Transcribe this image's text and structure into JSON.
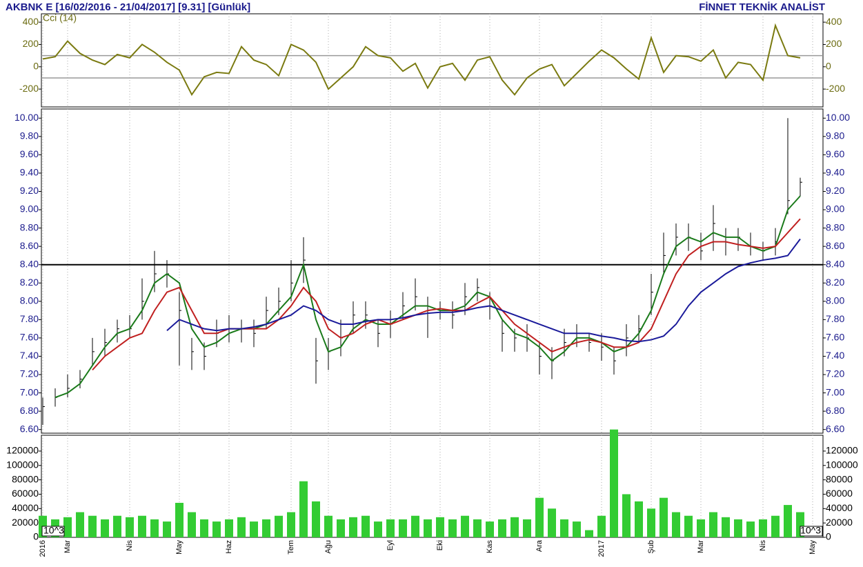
{
  "header": {
    "title": "AKBNK E  [16/02/2016 - 21/04/2017]  [9.31]  [Günlük]",
    "brand": "FİNNET TEKNİK ANALİST"
  },
  "chart_data": [
    {
      "type": "line",
      "label": "Cci (14)",
      "ylim": [
        -360,
        475
      ],
      "yticks": [
        -200,
        0,
        200,
        400
      ],
      "hlines": [
        100,
        -100
      ],
      "series": [
        {
          "color": "#7a7a10",
          "values": [
            70,
            90,
            230,
            120,
            60,
            20,
            110,
            80,
            200,
            130,
            40,
            -30,
            -250,
            -90,
            -50,
            -60,
            180,
            60,
            20,
            -80,
            200,
            150,
            40,
            -200,
            -100,
            0,
            180,
            100,
            80,
            -40,
            30,
            -190,
            0,
            30,
            -120,
            60,
            90,
            -120,
            -250,
            -100,
            -20,
            20,
            -170,
            -60,
            50,
            150,
            80,
            -20,
            -110,
            260,
            -50,
            100,
            90,
            50,
            150,
            -100,
            40,
            20,
            -120,
            370,
            100,
            80,
            null
          ]
        }
      ]
    },
    {
      "type": "ohlc",
      "ylim": [
        6.56,
        10.1
      ],
      "hline": 8.4,
      "color": "#000000",
      "yticks": [
        {
          "value": 6.6,
          "label": "6.60"
        },
        {
          "value": 6.8,
          "label": "6.80"
        },
        {
          "value": 7.0,
          "label": "7.00"
        },
        {
          "value": 7.2,
          "label": "7.20"
        },
        {
          "value": 7.4,
          "label": "7.40"
        },
        {
          "value": 7.6,
          "label": "7.60"
        },
        {
          "value": 7.8,
          "label": "7.80"
        },
        {
          "value": 8.0,
          "label": "8.00"
        },
        {
          "value": 8.2,
          "label": "8.20"
        },
        {
          "value": 8.4,
          "label": "8.40"
        },
        {
          "value": 8.6,
          "label": "8.60"
        },
        {
          "value": 8.8,
          "label": "8.80"
        },
        {
          "value": 9.0,
          "label": "9.00"
        },
        {
          "value": 9.2,
          "label": "9.20"
        },
        {
          "value": 9.4,
          "label": "9.40"
        },
        {
          "value": 9.6,
          "label": "9.60"
        },
        {
          "value": 9.8,
          "label": "9.80"
        },
        {
          "value": 10.0,
          "label": "10.00"
        }
      ],
      "high": [
        6.95,
        7.05,
        7.2,
        7.25,
        7.6,
        7.7,
        7.8,
        7.85,
        8.25,
        8.55,
        8.45,
        8.1,
        7.6,
        7.55,
        7.8,
        7.85,
        7.8,
        7.8,
        8.05,
        8.15,
        8.45,
        8.7,
        7.6,
        7.6,
        7.8,
        8.0,
        8.0,
        7.8,
        7.9,
        8.1,
        8.25,
        8.05,
        8.0,
        8.0,
        8.2,
        8.25,
        8.1,
        7.8,
        7.7,
        7.75,
        7.55,
        7.5,
        7.7,
        7.75,
        7.65,
        7.65,
        7.5,
        7.75,
        7.85,
        8.3,
        8.75,
        8.85,
        8.85,
        8.75,
        9.05,
        8.8,
        8.8,
        8.75,
        8.65,
        8.8,
        10.0,
        9.35,
        null
      ],
      "low": [
        6.65,
        6.85,
        6.95,
        7.05,
        7.3,
        7.4,
        7.55,
        7.6,
        7.8,
        8.1,
        8.15,
        7.3,
        7.25,
        7.25,
        7.5,
        7.55,
        7.55,
        7.5,
        7.7,
        7.85,
        8.0,
        8.2,
        7.1,
        7.25,
        7.4,
        7.65,
        7.7,
        7.5,
        7.6,
        7.8,
        7.9,
        7.6,
        7.8,
        7.7,
        7.85,
        8.0,
        7.8,
        7.45,
        7.45,
        7.45,
        7.2,
        7.15,
        7.4,
        7.5,
        7.45,
        7.35,
        7.2,
        7.4,
        7.55,
        7.85,
        8.3,
        8.5,
        8.55,
        8.45,
        8.55,
        8.5,
        8.55,
        8.5,
        8.45,
        8.5,
        8.95,
        9.15,
        null
      ],
      "close": [
        6.85,
        6.95,
        7.05,
        7.15,
        7.45,
        7.55,
        7.7,
        7.7,
        8.0,
        8.3,
        8.3,
        7.9,
        7.45,
        7.4,
        7.65,
        7.7,
        7.7,
        7.65,
        7.9,
        8.0,
        8.2,
        8.45,
        7.35,
        7.45,
        7.6,
        7.85,
        7.85,
        7.65,
        7.75,
        7.95,
        8.05,
        7.9,
        7.9,
        7.85,
        8.05,
        8.15,
        7.95,
        7.65,
        7.6,
        7.6,
        7.4,
        7.35,
        7.55,
        7.65,
        7.55,
        7.5,
        7.35,
        7.6,
        7.7,
        8.1,
        8.5,
        8.7,
        8.7,
        8.55,
        8.85,
        8.65,
        8.7,
        8.6,
        8.55,
        8.65,
        9.1,
        9.3,
        null
      ],
      "series": [
        {
          "color": "#1a7a1a",
          "values": [
            null,
            6.95,
            7.0,
            7.1,
            7.3,
            7.5,
            7.65,
            7.7,
            7.9,
            8.2,
            8.3,
            8.2,
            7.7,
            7.5,
            7.55,
            7.65,
            7.7,
            7.7,
            7.75,
            7.9,
            8.05,
            8.4,
            7.8,
            7.45,
            7.5,
            7.7,
            7.8,
            7.75,
            7.75,
            7.85,
            7.95,
            7.95,
            7.9,
            7.9,
            7.95,
            8.1,
            8.05,
            7.8,
            7.65,
            7.6,
            7.5,
            7.35,
            7.45,
            7.6,
            7.6,
            7.55,
            7.45,
            7.5,
            7.65,
            7.9,
            8.3,
            8.6,
            8.7,
            8.65,
            8.75,
            8.7,
            8.7,
            8.6,
            8.55,
            8.6,
            9.0,
            9.15,
            null
          ]
        },
        {
          "color": "#c02020",
          "values": [
            null,
            null,
            null,
            null,
            7.25,
            7.4,
            7.5,
            7.6,
            7.65,
            7.9,
            8.1,
            8.15,
            7.9,
            7.65,
            7.65,
            7.7,
            7.7,
            7.7,
            7.7,
            7.8,
            7.95,
            8.15,
            8.0,
            7.7,
            7.6,
            7.65,
            7.75,
            7.8,
            7.75,
            7.8,
            7.85,
            7.9,
            7.92,
            7.9,
            7.9,
            7.98,
            8.05,
            7.9,
            7.75,
            7.65,
            7.55,
            7.45,
            7.5,
            7.55,
            7.58,
            7.55,
            7.5,
            7.5,
            7.55,
            7.7,
            8.0,
            8.3,
            8.5,
            8.6,
            8.65,
            8.65,
            8.62,
            8.6,
            8.58,
            8.6,
            8.75,
            8.9,
            null
          ]
        },
        {
          "color": "#1a1a9a",
          "values": [
            null,
            null,
            null,
            null,
            null,
            null,
            null,
            null,
            null,
            null,
            7.68,
            7.8,
            7.75,
            7.7,
            7.68,
            7.7,
            7.7,
            7.72,
            7.75,
            7.8,
            7.85,
            7.95,
            7.9,
            7.8,
            7.75,
            7.75,
            7.78,
            7.8,
            7.8,
            7.82,
            7.85,
            7.87,
            7.88,
            7.88,
            7.9,
            7.93,
            7.95,
            7.9,
            7.85,
            7.8,
            7.75,
            7.7,
            7.65,
            7.65,
            7.65,
            7.62,
            7.6,
            7.57,
            7.56,
            7.58,
            7.62,
            7.75,
            7.95,
            8.1,
            8.2,
            8.3,
            8.38,
            8.42,
            8.45,
            8.47,
            8.5,
            8.68,
            null
          ]
        }
      ]
    },
    {
      "type": "bar",
      "color": "#33cc33",
      "unit_label": "10^3",
      "ylim": [
        0,
        142000
      ],
      "yticks": [
        0,
        20000,
        40000,
        60000,
        80000,
        100000,
        120000
      ],
      "categories": [
        "2016",
        null,
        "Mar",
        null,
        null,
        null,
        null,
        "Nis",
        null,
        null,
        null,
        "May",
        null,
        null,
        null,
        "Haz",
        null,
        null,
        null,
        null,
        "Tem",
        null,
        null,
        "Ağu",
        null,
        null,
        null,
        null,
        "Eyl",
        null,
        null,
        null,
        "Eki",
        null,
        null,
        null,
        "Kas",
        null,
        null,
        null,
        "Ara",
        null,
        null,
        null,
        null,
        "2017",
        null,
        null,
        null,
        "Şub",
        null,
        null,
        null,
        "Mar",
        null,
        null,
        null,
        null,
        "Nis",
        null,
        null,
        null,
        "May"
      ],
      "values": [
        30000,
        25000,
        28000,
        35000,
        30000,
        25000,
        30000,
        28000,
        30000,
        25000,
        22000,
        48000,
        35000,
        25000,
        22000,
        25000,
        28000,
        22000,
        25000,
        30000,
        35000,
        78000,
        50000,
        30000,
        25000,
        28000,
        30000,
        22000,
        25000,
        25000,
        30000,
        25000,
        28000,
        25000,
        30000,
        25000,
        22000,
        25000,
        28000,
        25000,
        55000,
        40000,
        25000,
        22000,
        10000,
        30000,
        150000,
        60000,
        50000,
        40000,
        55000,
        35000,
        30000,
        25000,
        35000,
        28000,
        25000,
        22000,
        25000,
        30000,
        45000,
        35000,
        null
      ]
    }
  ]
}
